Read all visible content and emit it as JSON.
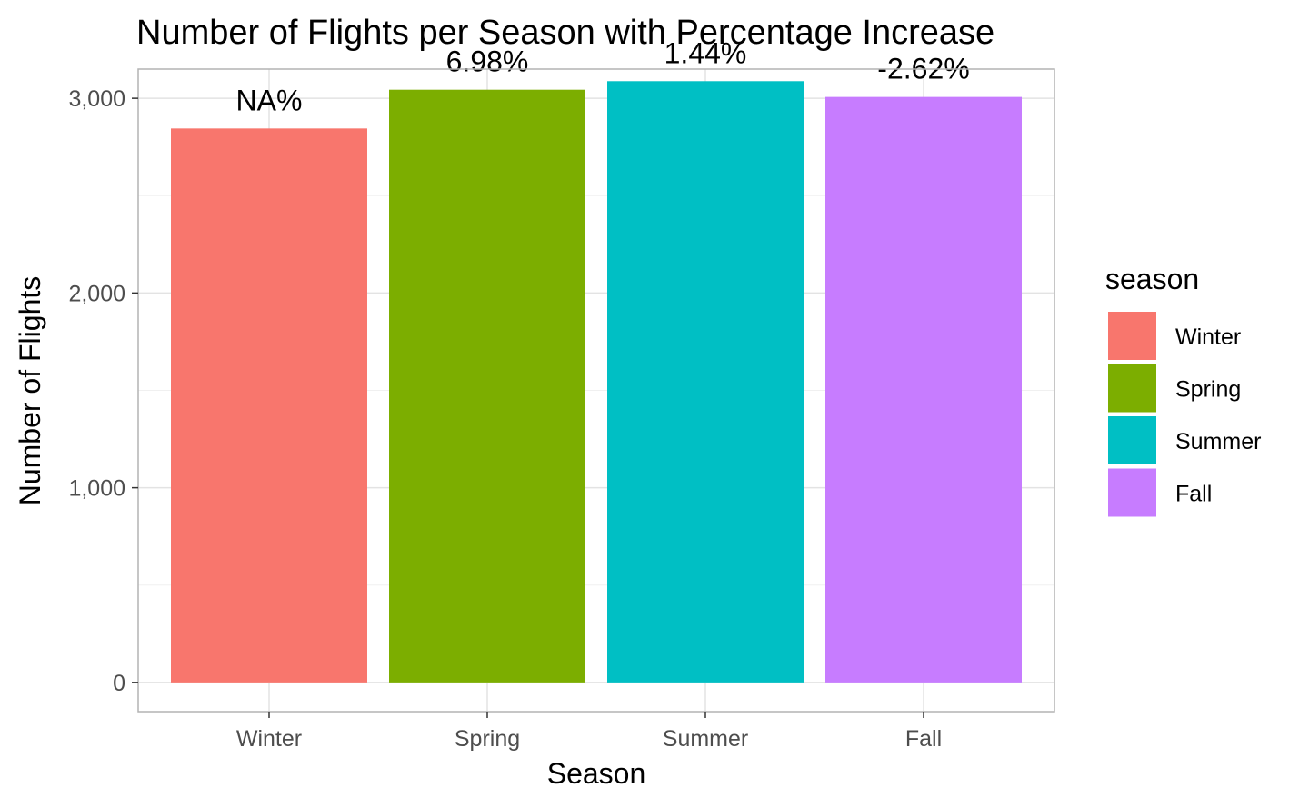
{
  "chart_data": {
    "type": "bar",
    "title": "Number of Flights per Season with Percentage Increase",
    "xlabel": "Season",
    "ylabel": "Number of Flights",
    "categories": [
      "Winter",
      "Spring",
      "Summer",
      "Fall"
    ],
    "values": [
      2845,
      3044,
      3088,
      3007
    ],
    "data_labels": [
      "NA%",
      "6.98%",
      "1.44%",
      "-2.62%"
    ],
    "colors": [
      "#F8766D",
      "#7CAE00",
      "#00BFC4",
      "#C77CFF"
    ],
    "ylim": [
      -150,
      3150
    ],
    "yticks": [
      0,
      1000,
      2000,
      3000
    ],
    "ytick_labels": [
      "0",
      "1,000",
      "2,000",
      "3,000"
    ],
    "grid": true,
    "legend": {
      "title": "season",
      "position": "right",
      "entries": [
        "Winter",
        "Spring",
        "Summer",
        "Fall"
      ]
    }
  }
}
